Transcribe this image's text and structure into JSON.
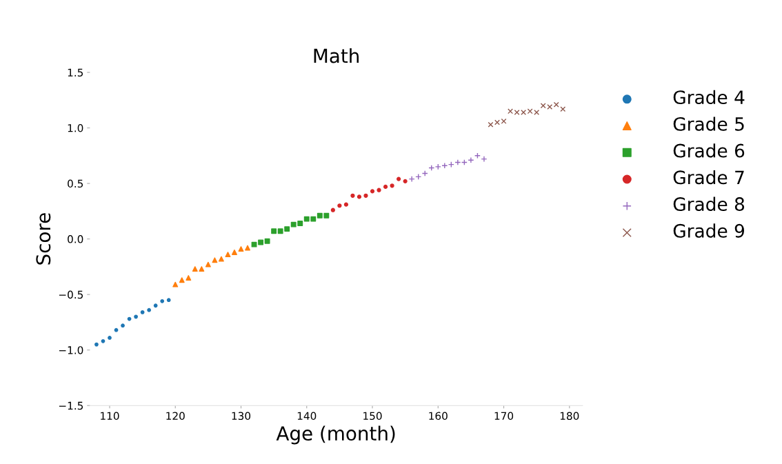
{
  "chart_data": {
    "type": "scatter",
    "title": "Math",
    "xlabel": "Age (month)",
    "ylabel": "Score",
    "xlim": [
      107,
      182
    ],
    "xticks": [
      110,
      120,
      130,
      140,
      150,
      160,
      170,
      180
    ],
    "ylim": [
      -1.5,
      1.5
    ],
    "yticks": [
      {
        "value": -1.5,
        "label": "−1.5"
      },
      {
        "value": -1.0,
        "label": "−1.0"
      },
      {
        "value": -0.5,
        "label": "−0.5"
      },
      {
        "value": 0.0,
        "label": "0.0"
      },
      {
        "value": 0.5,
        "label": "0.5"
      },
      {
        "value": 1.0,
        "label": "1.0"
      },
      {
        "value": 1.5,
        "label": "1.5"
      }
    ],
    "grid": false,
    "legend": "right",
    "series": [
      {
        "name": "Grade 4",
        "color": "#1f77b4",
        "marker": "point",
        "x": [
          108,
          109,
          110,
          111,
          112,
          113,
          114,
          115,
          116,
          117,
          118,
          119
        ],
        "values": [
          -0.95,
          -0.92,
          -0.89,
          -0.82,
          -0.78,
          -0.72,
          -0.7,
          -0.66,
          -0.64,
          -0.6,
          -0.56,
          -0.55
        ]
      },
      {
        "name": "Grade 5",
        "color": "#ff7f0e",
        "marker": "triangle",
        "x": [
          120,
          121,
          122,
          123,
          124,
          125,
          126,
          127,
          128,
          129,
          130,
          131
        ],
        "values": [
          -0.41,
          -0.37,
          -0.35,
          -0.27,
          -0.27,
          -0.23,
          -0.19,
          -0.18,
          -0.14,
          -0.12,
          -0.09,
          -0.08
        ]
      },
      {
        "name": "Grade 6",
        "color": "#2ca02c",
        "marker": "square",
        "x": [
          132,
          133,
          134,
          135,
          136,
          137,
          138,
          139,
          140,
          141,
          142,
          143
        ],
        "values": [
          -0.05,
          -0.03,
          -0.02,
          0.07,
          0.07,
          0.09,
          0.13,
          0.14,
          0.18,
          0.18,
          0.21,
          0.21
        ]
      },
      {
        "name": "Grade 7",
        "color": "#d62728",
        "marker": "circle",
        "x": [
          144,
          145,
          146,
          147,
          148,
          149,
          150,
          151,
          152,
          153,
          154,
          155
        ],
        "values": [
          0.26,
          0.3,
          0.31,
          0.39,
          0.38,
          0.39,
          0.43,
          0.44,
          0.47,
          0.48,
          0.54,
          0.52
        ]
      },
      {
        "name": "Grade 8",
        "color": "#9467bd",
        "marker": "plus",
        "x": [
          156,
          157,
          158,
          159,
          160,
          161,
          162,
          163,
          164,
          165,
          166,
          167
        ],
        "values": [
          0.54,
          0.56,
          0.59,
          0.64,
          0.65,
          0.66,
          0.67,
          0.69,
          0.69,
          0.71,
          0.75,
          0.72
        ]
      },
      {
        "name": "Grade 9",
        "color": "#8c564b",
        "marker": "cross",
        "x": [
          168,
          169,
          170,
          171,
          172,
          173,
          174,
          175,
          176,
          177,
          178,
          179
        ],
        "values": [
          1.03,
          1.05,
          1.06,
          1.15,
          1.14,
          1.14,
          1.15,
          1.14,
          1.2,
          1.19,
          1.21,
          1.17
        ]
      }
    ]
  }
}
